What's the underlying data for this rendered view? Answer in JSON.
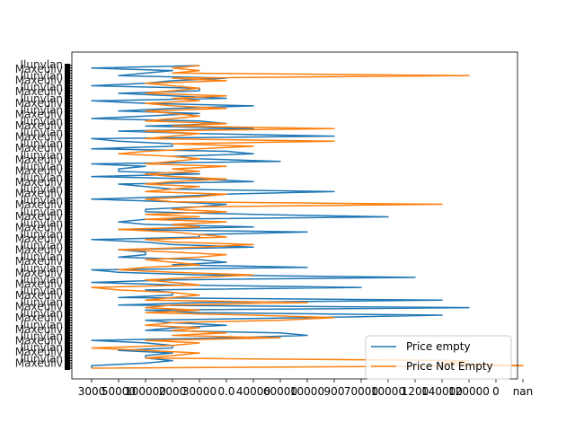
{
  "chart_data": {
    "type": "line",
    "orientation": "horizontal",
    "title": "",
    "xlabel": "",
    "ylabel": "",
    "grid": false,
    "legend_placement": "lower right",
    "x_tick_labels": [
      "3000",
      "50000",
      "100000",
      "2000",
      "30000",
      "0.0",
      "40000",
      "60000",
      "10000",
      "900",
      "70000",
      "10000",
      "1200",
      "140000",
      "120000",
      "0",
      "nan"
    ],
    "y_tick_labels_note": "category tick labels overlap and are illegible",
    "series": [
      {
        "name": "Price empty",
        "color": "#1f77b4",
        "values": [
          0,
          0,
          2,
          3,
          2,
          2,
          3,
          1,
          3,
          3,
          2,
          0,
          5,
          8,
          7,
          2,
          3,
          5,
          3,
          2,
          8,
          13,
          4,
          2,
          14,
          1,
          4,
          13,
          1,
          3,
          3,
          2,
          10,
          3,
          0,
          3,
          12,
          4,
          1,
          0,
          8,
          3,
          5,
          4,
          1,
          2,
          2,
          1,
          6,
          3,
          2,
          0,
          4,
          4,
          8,
          1,
          6,
          2,
          1,
          2,
          11,
          6,
          2,
          2,
          4,
          5,
          3,
          0,
          3,
          5,
          9,
          3,
          2,
          1,
          6,
          4,
          0,
          4,
          1,
          1,
          2,
          0,
          7,
          4,
          3,
          6,
          5,
          0,
          3,
          3,
          1,
          0,
          9,
          4,
          1,
          6,
          2,
          5,
          4,
          0,
          2,
          4,
          1,
          3,
          6,
          2,
          0,
          5,
          3,
          1,
          4,
          4,
          0,
          2,
          3,
          5,
          1,
          2,
          3,
          0,
          4
        ]
      },
      {
        "name": "Price Not Empty",
        "color": "#ff7f0e",
        "values": [
          0,
          16,
          13,
          14,
          2,
          3,
          4,
          2,
          0,
          3,
          4,
          2,
          7,
          3,
          5,
          3,
          4,
          2,
          3,
          7,
          9,
          6,
          2,
          4,
          2,
          3,
          8,
          2,
          3,
          4,
          3,
          1,
          0,
          4,
          3,
          2,
          4,
          6,
          3,
          1,
          2,
          4,
          3,
          2,
          4,
          5,
          3,
          1,
          4,
          6,
          3,
          2,
          5,
          4,
          3,
          1,
          4,
          3,
          5,
          2,
          4,
          2,
          5,
          3,
          4,
          13,
          3,
          2,
          4,
          5,
          2,
          3,
          4,
          2,
          3,
          5,
          3,
          2,
          4,
          3,
          5,
          2,
          3,
          4,
          3,
          1,
          2,
          4,
          6,
          3,
          9,
          2,
          3,
          4,
          2,
          9,
          3,
          5,
          2,
          3,
          4,
          3,
          2,
          5,
          3,
          2,
          4,
          3,
          5,
          2,
          3,
          4,
          3,
          2,
          5,
          3,
          14,
          3,
          4,
          3,
          4
        ]
      }
    ]
  }
}
